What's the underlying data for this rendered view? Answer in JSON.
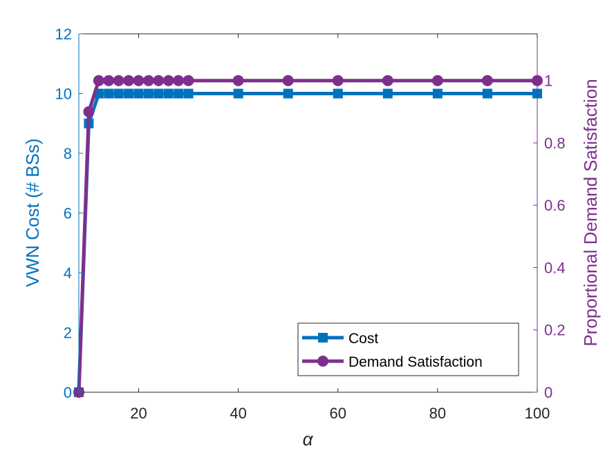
{
  "chart_data": {
    "type": "line",
    "xlabel": "α",
    "ylabel_left": "VWN Cost (# BSs)",
    "ylabel_right": "Proportional Demand Satisfaction",
    "xlim": [
      8,
      100
    ],
    "ylim_left": [
      0,
      12
    ],
    "ylim_right": [
      0,
      1.15
    ],
    "x_ticks": [
      20,
      40,
      60,
      80,
      100
    ],
    "y_left_ticks": [
      0,
      2,
      4,
      6,
      8,
      10,
      12
    ],
    "y_right_ticks": [
      0,
      0.2,
      0.4,
      0.6,
      0.8,
      1
    ],
    "x_tick_labels": [
      "20",
      "40",
      "60",
      "80",
      "100"
    ],
    "y_left_tick_labels": [
      "0",
      "2",
      "4",
      "6",
      "8",
      "10",
      "12"
    ],
    "y_right_tick_labels": [
      "0",
      "0.2",
      "0.4",
      "0.6",
      "0.8",
      "1"
    ],
    "legend_position": "bottom-right",
    "series": [
      {
        "name": "Cost",
        "axis": "left",
        "marker": "square",
        "color": "#0072BD",
        "x": [
          8,
          10,
          12,
          14,
          16,
          18,
          20,
          22,
          24,
          26,
          28,
          30,
          40,
          50,
          60,
          70,
          80,
          90,
          100
        ],
        "y": [
          0,
          9,
          10,
          10,
          10,
          10,
          10,
          10,
          10,
          10,
          10,
          10,
          10,
          10,
          10,
          10,
          10,
          10,
          10
        ]
      },
      {
        "name": "Demand Satisfaction",
        "axis": "right",
        "marker": "circle",
        "color": "#7E2F8E",
        "x": [
          8,
          10,
          12,
          14,
          16,
          18,
          20,
          22,
          24,
          26,
          28,
          30,
          40,
          50,
          60,
          70,
          80,
          90,
          100
        ],
        "y": [
          0,
          0.9,
          1,
          1,
          1,
          1,
          1,
          1,
          1,
          1,
          1,
          1,
          1,
          1,
          1,
          1,
          1,
          1,
          1
        ]
      }
    ]
  },
  "colors": {
    "left_axis": "#0072BD",
    "right_axis": "#7E2F8E",
    "x_axis": "#262626"
  }
}
